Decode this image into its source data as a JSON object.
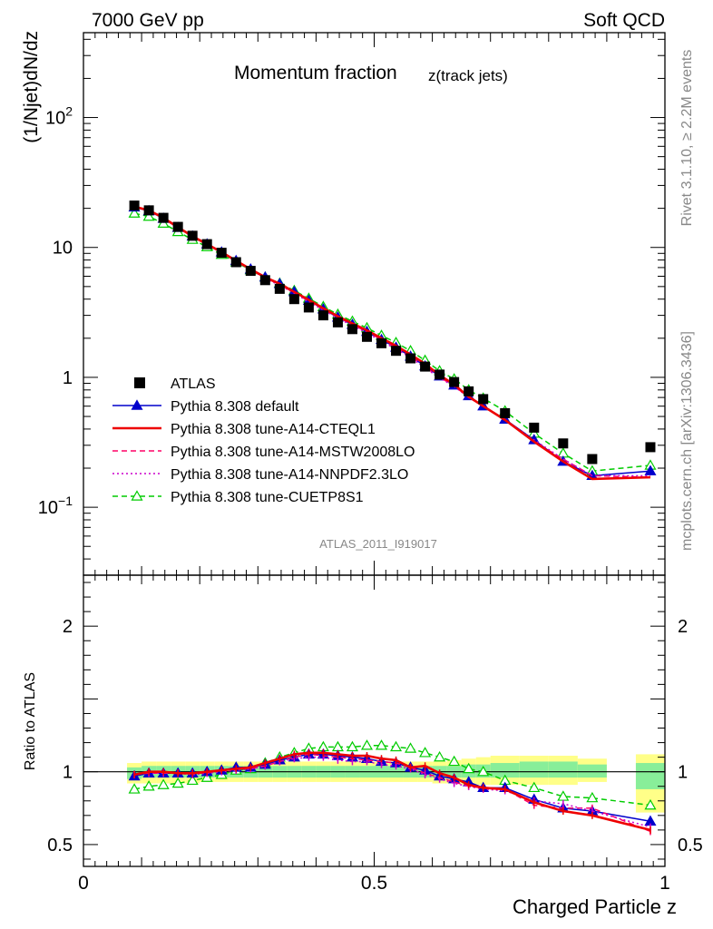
{
  "header": {
    "left": "7000 GeV pp",
    "right": "Soft QCD"
  },
  "side_labels": {
    "rivet": "Rivet 3.1.10, ≥ 2.2M events",
    "mcplots": "mcplots.cern.ch [arXiv:1306.3436]"
  },
  "chart_data": [
    {
      "type": "scatter",
      "panel": "main",
      "title": "Momentum fraction",
      "title_sub": "z(track jets)",
      "ylabel": "(1/Njet)dN/dz",
      "yscale": "log",
      "xlim": [
        0,
        1
      ],
      "ylim": [
        0.03,
        450
      ],
      "watermark": "ATLAS_2011_I919017",
      "legend_position": "middle-left",
      "y_tick_labels": [
        "10^-1",
        "1",
        "10",
        "10^2"
      ],
      "x": [
        0.0875,
        0.1125,
        0.1375,
        0.1625,
        0.1875,
        0.2125,
        0.2375,
        0.2625,
        0.2875,
        0.3125,
        0.3375,
        0.3625,
        0.3875,
        0.4125,
        0.4375,
        0.4625,
        0.4875,
        0.5125,
        0.5375,
        0.5625,
        0.5875,
        0.6125,
        0.6375,
        0.6625,
        0.6875,
        0.725,
        0.775,
        0.825,
        0.875,
        0.975
      ],
      "series": [
        {
          "name": "ATLAS",
          "style": "data",
          "color": "#000000",
          "values": [
            21.0,
            19.3,
            16.9,
            14.4,
            12.3,
            10.6,
            9.1,
            7.7,
            6.6,
            5.6,
            4.8,
            4.0,
            3.45,
            3.0,
            2.65,
            2.35,
            2.05,
            1.83,
            1.6,
            1.4,
            1.21,
            1.05,
            0.92,
            0.78,
            0.68,
            0.53,
            0.41,
            0.31,
            0.235,
            0.29
          ]
        },
        {
          "name": "Pythia 8.308 default",
          "style": "line-triangle",
          "color": "#0000cc",
          "values": [
            20.4,
            19.1,
            16.7,
            14.2,
            12.2,
            10.6,
            9.2,
            7.9,
            6.8,
            5.9,
            5.25,
            4.55,
            3.9,
            3.35,
            2.9,
            2.55,
            2.25,
            1.95,
            1.7,
            1.45,
            1.22,
            1.02,
            0.87,
            0.72,
            0.6,
            0.475,
            0.33,
            0.225,
            0.175,
            0.19
          ]
        },
        {
          "name": "Pythia 8.308 tune-A14-CTEQL1",
          "style": "solid",
          "color": "#ee0000",
          "values": [
            20.6,
            19.3,
            16.9,
            14.3,
            12.2,
            10.6,
            9.2,
            7.9,
            6.8,
            5.9,
            5.25,
            4.55,
            3.95,
            3.4,
            2.95,
            2.6,
            2.3,
            2.0,
            1.75,
            1.5,
            1.27,
            1.04,
            0.88,
            0.71,
            0.6,
            0.47,
            0.32,
            0.225,
            0.165,
            0.17
          ]
        },
        {
          "name": "Pythia 8.308 tune-A14-MSTW2008LO",
          "style": "dashed",
          "color": "#ff0066",
          "values": [
            20.5,
            19.2,
            16.8,
            14.2,
            12.1,
            10.5,
            9.15,
            7.85,
            6.75,
            5.85,
            5.15,
            4.5,
            3.85,
            3.35,
            2.9,
            2.55,
            2.25,
            1.95,
            1.7,
            1.45,
            1.2,
            1.0,
            0.86,
            0.7,
            0.6,
            0.47,
            0.32,
            0.235,
            0.175,
            0.17
          ]
        },
        {
          "name": "Pythia 8.308 tune-A14-NNPDF2.3LO",
          "style": "dotted",
          "color": "#cc00cc",
          "values": [
            20.5,
            19.2,
            16.8,
            14.2,
            12.1,
            10.5,
            9.1,
            7.8,
            6.7,
            5.8,
            5.1,
            4.45,
            3.8,
            3.3,
            2.85,
            2.5,
            2.2,
            1.9,
            1.65,
            1.42,
            1.18,
            0.99,
            0.85,
            0.7,
            0.6,
            0.47,
            0.33,
            0.235,
            0.175,
            0.175
          ]
        },
        {
          "name": "Pythia 8.308 tune-CUETP8S1",
          "style": "dashed-open-triangle",
          "color": "#00cc00",
          "values": [
            18.3,
            17.3,
            15.3,
            13.2,
            11.5,
            10.1,
            8.8,
            7.7,
            6.7,
            5.9,
            5.3,
            4.65,
            4.05,
            3.5,
            3.05,
            2.7,
            2.4,
            2.1,
            1.85,
            1.6,
            1.35,
            1.12,
            0.97,
            0.8,
            0.69,
            0.55,
            0.37,
            0.26,
            0.19,
            0.21
          ]
        }
      ]
    },
    {
      "type": "line",
      "panel": "ratio",
      "ylabel": "Ratio to ATLAS",
      "xlabel": "Charged Particle z",
      "xlim": [
        0,
        1
      ],
      "ylim": [
        0.35,
        2.35
      ],
      "x_tick_labels": [
        "0",
        "0.5",
        "1"
      ],
      "y_tick_labels": [
        "0.5",
        "1",
        "2"
      ],
      "uncertainty_band_inner_color": "#88ee99",
      "uncertainty_band_outer_color": "#ffff88",
      "bands": [
        {
          "x0": 0.075,
          "x1": 0.1,
          "inner": [
            0.95,
            1.03
          ],
          "outer": [
            0.92,
            1.06
          ]
        },
        {
          "x0": 0.1,
          "x1": 0.125,
          "inner": [
            0.96,
            1.04
          ],
          "outer": [
            0.92,
            1.07
          ]
        },
        {
          "x0": 0.125,
          "x1": 0.15,
          "inner": [
            0.96,
            1.04
          ],
          "outer": [
            0.92,
            1.07
          ]
        },
        {
          "x0": 0.15,
          "x1": 0.175,
          "inner": [
            0.96,
            1.04
          ],
          "outer": [
            0.92,
            1.07
          ]
        },
        {
          "x0": 0.175,
          "x1": 0.2,
          "inner": [
            0.96,
            1.04
          ],
          "outer": [
            0.92,
            1.07
          ]
        },
        {
          "x0": 0.2,
          "x1": 0.225,
          "inner": [
            0.96,
            1.04
          ],
          "outer": [
            0.93,
            1.07
          ]
        },
        {
          "x0": 0.225,
          "x1": 0.25,
          "inner": [
            0.96,
            1.04
          ],
          "outer": [
            0.93,
            1.07
          ]
        },
        {
          "x0": 0.25,
          "x1": 0.275,
          "inner": [
            0.96,
            1.04
          ],
          "outer": [
            0.93,
            1.07
          ]
        },
        {
          "x0": 0.275,
          "x1": 0.3,
          "inner": [
            0.96,
            1.04
          ],
          "outer": [
            0.93,
            1.07
          ]
        },
        {
          "x0": 0.3,
          "x1": 0.325,
          "inner": [
            0.96,
            1.04
          ],
          "outer": [
            0.93,
            1.07
          ]
        },
        {
          "x0": 0.325,
          "x1": 0.35,
          "inner": [
            0.96,
            1.04
          ],
          "outer": [
            0.93,
            1.07
          ]
        },
        {
          "x0": 0.35,
          "x1": 0.375,
          "inner": [
            0.96,
            1.04
          ],
          "outer": [
            0.93,
            1.07
          ]
        },
        {
          "x0": 0.375,
          "x1": 0.4,
          "inner": [
            0.96,
            1.04
          ],
          "outer": [
            0.93,
            1.07
          ]
        },
        {
          "x0": 0.4,
          "x1": 0.425,
          "inner": [
            0.96,
            1.04
          ],
          "outer": [
            0.93,
            1.07
          ]
        },
        {
          "x0": 0.425,
          "x1": 0.45,
          "inner": [
            0.96,
            1.04
          ],
          "outer": [
            0.93,
            1.07
          ]
        },
        {
          "x0": 0.45,
          "x1": 0.475,
          "inner": [
            0.96,
            1.04
          ],
          "outer": [
            0.93,
            1.07
          ]
        },
        {
          "x0": 0.475,
          "x1": 0.5,
          "inner": [
            0.96,
            1.04
          ],
          "outer": [
            0.93,
            1.07
          ]
        },
        {
          "x0": 0.5,
          "x1": 0.525,
          "inner": [
            0.96,
            1.04
          ],
          "outer": [
            0.93,
            1.07
          ]
        },
        {
          "x0": 0.525,
          "x1": 0.55,
          "inner": [
            0.96,
            1.04
          ],
          "outer": [
            0.93,
            1.07
          ]
        },
        {
          "x0": 0.55,
          "x1": 0.575,
          "inner": [
            0.96,
            1.04
          ],
          "outer": [
            0.93,
            1.07
          ]
        },
        {
          "x0": 0.575,
          "x1": 0.6,
          "inner": [
            0.96,
            1.04
          ],
          "outer": [
            0.93,
            1.07
          ]
        },
        {
          "x0": 0.6,
          "x1": 0.625,
          "inner": [
            0.96,
            1.04
          ],
          "outer": [
            0.92,
            1.07
          ]
        },
        {
          "x0": 0.625,
          "x1": 0.65,
          "inner": [
            0.96,
            1.04
          ],
          "outer": [
            0.92,
            1.08
          ]
        },
        {
          "x0": 0.65,
          "x1": 0.675,
          "inner": [
            0.96,
            1.05
          ],
          "outer": [
            0.91,
            1.09
          ]
        },
        {
          "x0": 0.675,
          "x1": 0.7,
          "inner": [
            0.96,
            1.05
          ],
          "outer": [
            0.91,
            1.1
          ]
        },
        {
          "x0": 0.7,
          "x1": 0.75,
          "inner": [
            0.96,
            1.06
          ],
          "outer": [
            0.91,
            1.11
          ]
        },
        {
          "x0": 0.75,
          "x1": 0.8,
          "inner": [
            0.96,
            1.07
          ],
          "outer": [
            0.91,
            1.11
          ]
        },
        {
          "x0": 0.8,
          "x1": 0.85,
          "inner": [
            0.96,
            1.07
          ],
          "outer": [
            0.91,
            1.11
          ]
        },
        {
          "x0": 0.85,
          "x1": 0.9,
          "inner": [
            0.96,
            1.05
          ],
          "outer": [
            0.93,
            1.09
          ]
        },
        {
          "x0": 0.95,
          "x1": 1.0,
          "inner": [
            0.88,
            1.06
          ],
          "outer": [
            0.72,
            1.12
          ]
        }
      ],
      "series": [
        {
          "name": "Pythia 8.308 default",
          "color": "#0000cc",
          "values": [
            0.97,
            0.99,
            0.99,
            0.99,
            0.99,
            1.0,
            1.01,
            1.03,
            1.03,
            1.05,
            1.08,
            1.1,
            1.12,
            1.12,
            1.11,
            1.1,
            1.09,
            1.07,
            1.06,
            1.03,
            1.01,
            0.97,
            0.95,
            0.93,
            0.89,
            0.89,
            0.81,
            0.75,
            0.73,
            0.66
          ]
        },
        {
          "name": "Pythia 8.308 tune-A14-CTEQL1",
          "color": "#ee0000",
          "values": [
            0.98,
            1.0,
            1.0,
            0.99,
            0.99,
            1.0,
            1.01,
            1.02,
            1.03,
            1.06,
            1.09,
            1.12,
            1.13,
            1.13,
            1.12,
            1.11,
            1.11,
            1.09,
            1.08,
            1.03,
            1.04,
            0.99,
            0.96,
            0.91,
            0.89,
            0.88,
            0.79,
            0.73,
            0.7,
            0.6
          ]
        },
        {
          "name": "Pythia 8.308 tune-A14-MSTW2008LO",
          "color": "#ff0066",
          "values": [
            0.98,
            0.99,
            0.99,
            0.99,
            0.99,
            0.99,
            1.01,
            1.02,
            1.02,
            1.04,
            1.07,
            1.1,
            1.12,
            1.11,
            1.1,
            1.09,
            1.08,
            1.07,
            1.06,
            1.03,
            0.99,
            0.96,
            0.93,
            0.9,
            0.89,
            0.88,
            0.77,
            0.75,
            0.75,
            0.59
          ]
        },
        {
          "name": "Pythia 8.308 tune-A14-NNPDF2.3LO",
          "color": "#cc00cc",
          "values": [
            0.98,
            0.99,
            0.99,
            0.99,
            0.98,
            0.99,
            1.0,
            1.01,
            1.02,
            1.04,
            1.07,
            1.09,
            1.1,
            1.1,
            1.08,
            1.07,
            1.07,
            1.05,
            1.04,
            1.02,
            0.98,
            0.95,
            0.92,
            0.9,
            0.88,
            0.87,
            0.8,
            0.78,
            0.73,
            0.62
          ]
        },
        {
          "name": "Pythia 8.308 tune-CUETP8S1",
          "color": "#00cc00",
          "values": [
            0.88,
            0.9,
            0.91,
            0.92,
            0.94,
            0.96,
            0.98,
            1.01,
            1.02,
            1.06,
            1.1,
            1.13,
            1.16,
            1.17,
            1.17,
            1.17,
            1.18,
            1.18,
            1.17,
            1.16,
            1.13,
            1.1,
            1.07,
            1.02,
            1.0,
            0.94,
            0.89,
            0.83,
            0.82,
            0.77
          ]
        }
      ]
    }
  ]
}
